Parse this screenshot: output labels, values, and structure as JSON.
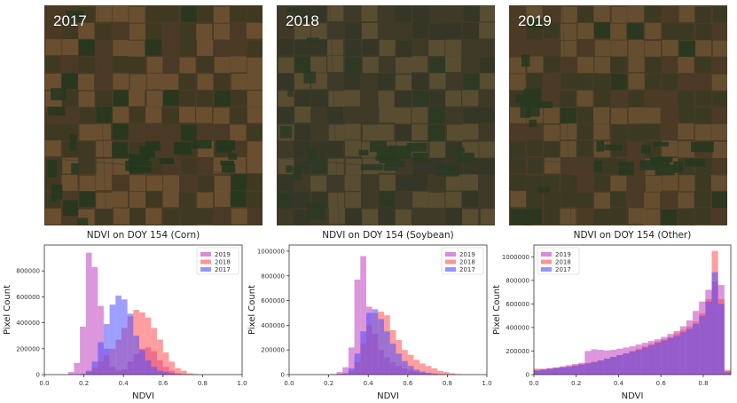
{
  "satellite_images": [
    {
      "year_label": "2017",
      "palette": {
        "base": "#4a3a26",
        "field_light": "#6e5433",
        "field_dark": "#3d3a22",
        "green": "#24371e"
      }
    },
    {
      "year_label": "2018",
      "palette": {
        "base": "#3f3a28",
        "field_light": "#5d5033",
        "field_dark": "#343624",
        "green": "#2a3a22"
      }
    },
    {
      "year_label": "2019",
      "palette": {
        "base": "#4b3b26",
        "field_light": "#6a5232",
        "field_dark": "#3a3a23",
        "green": "#26381f"
      }
    }
  ],
  "colors": {
    "2019": "#bf40bf",
    "2018": "#ff4f4f",
    "2017": "#4f4fff"
  },
  "chart_data": [
    {
      "type": "histogram",
      "title": "NDVI on DOY 154 (Corn)",
      "xlabel": "NDVI",
      "ylabel": "Pixel Count",
      "xlim": [
        0.0,
        1.0
      ],
      "ylim": [
        0,
        1000000
      ],
      "xticks": [
        "0.0",
        "0.2",
        "0.4",
        "0.6",
        "0.8",
        "1.0"
      ],
      "yticks": [
        {
          "v": 0,
          "label": "0"
        },
        {
          "v": 200000,
          "label": "200000"
        },
        {
          "v": 400000,
          "label": "400000"
        },
        {
          "v": 600000,
          "label": "600000"
        },
        {
          "v": 800000,
          "label": "800000"
        }
      ],
      "legend_position": "top-right",
      "bin_start": 0.12,
      "bin_width": 0.03,
      "series": [
        {
          "name": "2019",
          "values": [
            20000,
            90000,
            370000,
            940000,
            830000,
            530000,
            200000,
            60000,
            30000,
            40000,
            100000,
            160000,
            200000,
            210000,
            180000,
            110000,
            60000,
            30000,
            10000,
            5000,
            2000,
            0,
            0,
            0
          ]
        },
        {
          "name": "2018",
          "values": [
            0,
            0,
            5000,
            20000,
            50000,
            100000,
            150000,
            200000,
            270000,
            360000,
            450000,
            500000,
            480000,
            440000,
            360000,
            270000,
            170000,
            100000,
            50000,
            30000,
            10000,
            5000,
            0,
            0
          ]
        },
        {
          "name": "2017",
          "values": [
            0,
            0,
            5000,
            30000,
            100000,
            250000,
            390000,
            540000,
            610000,
            580000,
            470000,
            300000,
            190000,
            110000,
            60000,
            30000,
            20000,
            10000,
            5000,
            0,
            0,
            0,
            0,
            0
          ]
        }
      ]
    },
    {
      "type": "histogram",
      "title": "NDVI on DOY 154 (Soybean)",
      "xlabel": "NDVI",
      "ylabel": "Pixel Count",
      "xlim": [
        0.0,
        1.0
      ],
      "ylim": [
        0,
        1050000
      ],
      "xticks": [
        "0.0",
        "0.2",
        "0.4",
        "0.6",
        "0.8",
        "1.0"
      ],
      "yticks": [
        {
          "v": 0,
          "label": "0"
        },
        {
          "v": 200000,
          "label": "200000"
        },
        {
          "v": 400000,
          "label": "400000"
        },
        {
          "v": 600000,
          "label": "600000"
        },
        {
          "v": 800000,
          "label": "800000"
        },
        {
          "v": 1000000,
          "label": "1000000"
        }
      ],
      "legend_position": "top-right",
      "bin_start": 0.12,
      "bin_width": 0.03,
      "series": [
        {
          "name": "2019",
          "values": [
            0,
            0,
            0,
            5000,
            20000,
            60000,
            220000,
            770000,
            960000,
            550000,
            330000,
            200000,
            140000,
            100000,
            70000,
            50000,
            35000,
            25000,
            15000,
            10000,
            5000,
            2000,
            0,
            0,
            0,
            0
          ]
        },
        {
          "name": "2018",
          "values": [
            0,
            0,
            0,
            0,
            5000,
            10000,
            30000,
            100000,
            250000,
            400000,
            500000,
            510000,
            480000,
            360000,
            280000,
            200000,
            160000,
            120000,
            90000,
            70000,
            50000,
            30000,
            20000,
            10000,
            5000,
            0
          ]
        },
        {
          "name": "2017",
          "values": [
            0,
            0,
            0,
            0,
            5000,
            10000,
            50000,
            170000,
            350000,
            500000,
            530000,
            450000,
            350000,
            250000,
            170000,
            110000,
            70000,
            40000,
            25000,
            15000,
            8000,
            4000,
            0,
            0,
            0,
            0
          ]
        }
      ]
    },
    {
      "type": "histogram",
      "title": "NDVI on DOY 154 (Other)",
      "xlabel": "NDVI",
      "ylabel": "Pixel Count",
      "xlim": [
        0.0,
        0.93
      ],
      "ylim": [
        0,
        1100000
      ],
      "xticks": [
        "0.0",
        "0.2",
        "0.4",
        "0.6",
        "0.8"
      ],
      "yticks": [
        {
          "v": 0,
          "label": "0"
        },
        {
          "v": 200000,
          "label": "200000"
        },
        {
          "v": 400000,
          "label": "400000"
        },
        {
          "v": 600000,
          "label": "600000"
        },
        {
          "v": 800000,
          "label": "800000"
        },
        {
          "v": 1000000,
          "label": "1000000"
        }
      ],
      "legend_position": "top-left",
      "bin_start": 0.0,
      "bin_width": 0.03,
      "series": [
        {
          "name": "2019",
          "values": [
            30000,
            40000,
            50000,
            60000,
            70000,
            80000,
            90000,
            100000,
            200000,
            215000,
            210000,
            205000,
            210000,
            220000,
            230000,
            240000,
            255000,
            270000,
            285000,
            300000,
            320000,
            345000,
            370000,
            410000,
            460000,
            540000,
            620000,
            720000,
            790000,
            760000,
            30000
          ]
        },
        {
          "name": "2018",
          "values": [
            50000,
            50000,
            55000,
            60000,
            65000,
            70000,
            80000,
            90000,
            100000,
            110000,
            120000,
            135000,
            150000,
            165000,
            180000,
            200000,
            220000,
            240000,
            260000,
            280000,
            300000,
            320000,
            350000,
            380000,
            410000,
            450000,
            520000,
            640000,
            1050000,
            640000,
            40000
          ]
        },
        {
          "name": "2017",
          "values": [
            40000,
            45000,
            50000,
            55000,
            60000,
            65000,
            75000,
            85000,
            95000,
            105000,
            120000,
            135000,
            150000,
            165000,
            180000,
            195000,
            210000,
            230000,
            250000,
            270000,
            290000,
            310000,
            330000,
            360000,
            390000,
            430000,
            500000,
            620000,
            870000,
            600000,
            20000
          ]
        }
      ]
    }
  ]
}
